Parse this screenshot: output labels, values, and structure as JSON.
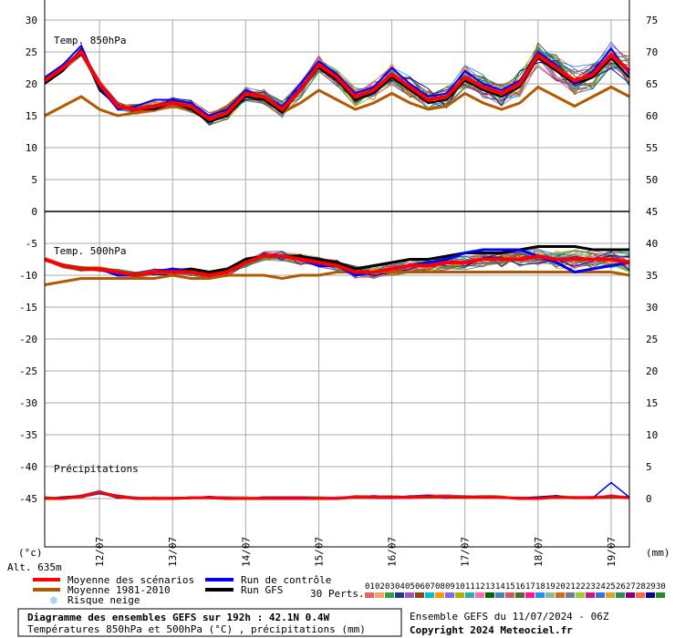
{
  "chart_data": {
    "type": "line",
    "title": "Diagramme des ensembles GEFS sur 192h : 42.1N 0.4W",
    "subtitle": "Températures 850hPa et 500hPa (°C) , précipitations (mm)",
    "run_info": "Ensemble GEFS du 11/07/2024 - 06Z",
    "copyright": "Copyright 2024 Meteociel.fr",
    "altitude": "Alt. 635m",
    "left_unit": "(°c)",
    "right_unit": "(mm)",
    "left_ticks": [
      30,
      25,
      20,
      15,
      10,
      5,
      0,
      -5,
      -10,
      -15,
      -20,
      -25,
      -30,
      -35,
      -40,
      -45
    ],
    "right_ticks_top": [
      75,
      70,
      65,
      60,
      55,
      50
    ],
    "right_ticks_mid": [
      45,
      40,
      35,
      30,
      25,
      20,
      15,
      10,
      5,
      0
    ],
    "date_labels": [
      "12/07",
      "13/07",
      "14/07",
      "15/07",
      "16/07",
      "17/07",
      "18/07",
      "19/07"
    ],
    "panels": {
      "t850": "Temp. 850hPa",
      "t500": "Temp. 500hPa",
      "precip": "Précipitations"
    },
    "x_hours": [
      0,
      6,
      12,
      18,
      24,
      30,
      36,
      42,
      48,
      54,
      60,
      66,
      72,
      78,
      84,
      90,
      96,
      102,
      108,
      114,
      120,
      126,
      132,
      138,
      144,
      150,
      156,
      162,
      168,
      174,
      180,
      186,
      192
    ],
    "series": {
      "t850_mean": [
        20.5,
        22.5,
        25,
        20,
        16.5,
        16,
        16.5,
        17,
        16.5,
        14.5,
        15.5,
        18.5,
        18,
        16,
        19,
        23,
        21,
        18,
        19,
        21.5,
        19.5,
        17.5,
        18,
        21,
        19.5,
        18.5,
        20,
        24.5,
        22.5,
        20.5,
        21.5,
        24.5,
        22
      ],
      "t850_climo": [
        15,
        16.5,
        18,
        16,
        15,
        15.5,
        16,
        16.5,
        16,
        15,
        16.5,
        19,
        17.5,
        15.5,
        17,
        19,
        17.5,
        16,
        17,
        18.5,
        17,
        16,
        16.5,
        18.5,
        17,
        16,
        17,
        19.5,
        18,
        16.5,
        18,
        19.5,
        18
      ],
      "t850_control": [
        21,
        23,
        26,
        19.5,
        16,
        16.5,
        17.5,
        17.5,
        17,
        15,
        16,
        19,
        18,
        16.5,
        20,
        23.5,
        21.5,
        18.5,
        19.5,
        22.5,
        20,
        18,
        18.5,
        22,
        20,
        19,
        20.5,
        25,
        23,
        20,
        22,
        25.5,
        21.5
      ],
      "t850_gfs": [
        20,
        22,
        25.5,
        19,
        16.5,
        16,
        16,
        17,
        16,
        14,
        15,
        18,
        17.5,
        15.5,
        19,
        22.5,
        20.5,
        17.5,
        18.5,
        21,
        19,
        17,
        17.5,
        20.5,
        19,
        18,
        19.5,
        24,
        22,
        20,
        21,
        24,
        21
      ],
      "t500_mean": [
        -7.5,
        -8.5,
        -9,
        -9,
        -9.5,
        -10,
        -9.5,
        -9.5,
        -9.5,
        -10,
        -9.5,
        -8,
        -7,
        -7,
        -7.5,
        -8,
        -8.5,
        -9.5,
        -9.5,
        -9,
        -8.5,
        -8.5,
        -8,
        -8,
        -7.5,
        -7.5,
        -7.5,
        -7,
        -7.5,
        -7.5,
        -7.5,
        -7.5,
        -8
      ],
      "t500_climo": [
        -11.5,
        -11,
        -10.5,
        -10.5,
        -10.5,
        -10.5,
        -10.5,
        -10,
        -10.5,
        -10.5,
        -10,
        -10,
        -10,
        -10.5,
        -10,
        -10,
        -9.5,
        -9.5,
        -9.5,
        -9.5,
        -9.5,
        -9.5,
        -9.5,
        -9.5,
        -9.5,
        -9.5,
        -9.5,
        -9.5,
        -9.5,
        -9.5,
        -9.5,
        -9.5,
        -10
      ],
      "t500_control": [
        -7.5,
        -8.5,
        -9,
        -9,
        -10,
        -10,
        -9.5,
        -9,
        -9.5,
        -10,
        -9.5,
        -8,
        -7,
        -7,
        -7.5,
        -8.5,
        -8.5,
        -10,
        -9.5,
        -9,
        -8.5,
        -8,
        -7.5,
        -6.5,
        -6,
        -6,
        -6,
        -7,
        -8,
        -9.5,
        -9,
        -8.5,
        -8
      ],
      "t500_gfs": [
        -7.5,
        -8.5,
        -9,
        -9,
        -9.5,
        -10,
        -9.5,
        -9.5,
        -9,
        -9.5,
        -9,
        -7.5,
        -7,
        -7,
        -7,
        -7.5,
        -8,
        -9,
        -8.5,
        -8,
        -7.5,
        -7.5,
        -7,
        -6.5,
        -6.5,
        -6.5,
        -6,
        -5.5,
        -5.5,
        -5.5,
        -6,
        -6,
        -6
      ],
      "precip_mean": [
        0,
        0,
        0.3,
        1,
        0.3,
        0,
        0,
        0,
        0.1,
        0.1,
        0,
        0,
        0,
        0,
        0,
        0,
        0,
        0.2,
        0.2,
        0.2,
        0.2,
        0.3,
        0.3,
        0.2,
        0.2,
        0.2,
        0,
        0,
        0.2,
        0.1,
        0.1,
        0.3,
        0.1
      ],
      "precip_control": [
        0,
        0,
        0.2,
        0.8,
        0.2,
        0,
        0,
        0,
        0,
        0.1,
        0,
        0,
        0,
        0,
        0,
        0,
        0,
        0.1,
        0.1,
        0.1,
        0.1,
        0.2,
        0.2,
        0.1,
        0.1,
        0.1,
        0,
        0,
        0.1,
        0.1,
        0.1,
        2.5,
        0.2
      ]
    },
    "legend": {
      "mean": "Moyenne des scénarios",
      "climo": "Moyenne 1981-2010",
      "snow": "Risque neige",
      "control": "Run de contrôle",
      "gfs": "Run GFS",
      "perts_label": "30 Perts.",
      "perts": [
        "01",
        "02",
        "03",
        "04",
        "05",
        "06",
        "07",
        "08",
        "09",
        "10",
        "11",
        "12",
        "13",
        "14",
        "15",
        "16",
        "17",
        "18",
        "19",
        "20",
        "21",
        "22",
        "23",
        "24",
        "25",
        "26",
        "27",
        "28",
        "29",
        "30"
      ]
    },
    "colors": {
      "mean": "#ff0000",
      "climo": "#b35900",
      "control": "#0000ff",
      "gfs": "#000000",
      "grid": "#aaaaaa",
      "snow": "#6ab4f0",
      "perts": [
        "#e06666",
        "#f4a460",
        "#2f9e44",
        "#1e3a8a",
        "#9b59b6",
        "#8b4513",
        "#00bcd4",
        "#ff9800",
        "#7b68ee",
        "#b0b000",
        "#20b2aa",
        "#ff69b4",
        "#006400",
        "#4682b4",
        "#cd5c5c",
        "#556b2f",
        "#ff1493",
        "#1e90ff",
        "#8fbc8f",
        "#d2691e",
        "#708090",
        "#9acd32",
        "#c71585",
        "#4169e1",
        "#daa520",
        "#2e8b57",
        "#800080",
        "#ff6347",
        "#00008b",
        "#228b22"
      ]
    },
    "grid": true
  }
}
